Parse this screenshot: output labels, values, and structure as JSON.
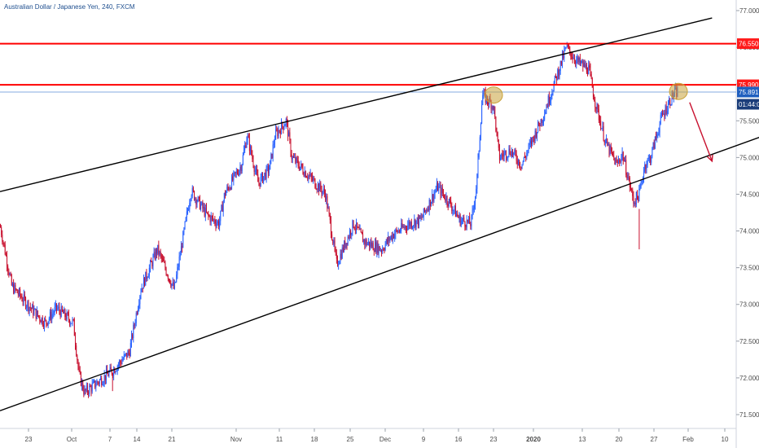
{
  "header": {
    "title": "Australian Dollar / Japanese Yen, 240, FXCM"
  },
  "colors": {
    "bull": "#2962ff",
    "bear": "#c8102e",
    "resistance": "#ff0000",
    "trend": "#000000",
    "price_line": "#5b8fd6",
    "highlight": "#c8a23a",
    "label_red": "#ff1a1a",
    "label_blue": "#1f5fbf",
    "label_dark": "#1b3d7a"
  },
  "chart_data": {
    "type": "candlestick",
    "title": "Australian Dollar / Japanese Yen, 240, FXCM",
    "ylim": [
      71.35,
      77.15
    ],
    "y_ticks": [
      "77.000",
      "76.500",
      "76.000",
      "75.500",
      "75.000",
      "74.500",
      "74.000",
      "73.500",
      "73.000",
      "72.500",
      "72.000",
      "71.500"
    ],
    "y_tick_values": [
      77.0,
      76.5,
      76.0,
      75.5,
      75.0,
      74.5,
      74.0,
      73.5,
      73.0,
      72.5,
      72.0,
      71.5
    ],
    "x_ticks": [
      "23",
      "Oct",
      "7",
      "14",
      "21",
      "Nov",
      "11",
      "18",
      "25",
      "Dec",
      "9",
      "16",
      "23",
      "2020",
      "13",
      "20",
      "27",
      "Feb",
      "10"
    ],
    "x_tick_bold": [
      "2020"
    ],
    "grid": false,
    "price_path": [
      [
        "2019-09-16",
        74.25
      ],
      [
        "2019-09-18",
        74.05
      ],
      [
        "2019-09-20",
        73.25
      ],
      [
        "2019-09-24",
        72.9
      ],
      [
        "2019-09-26",
        72.75
      ],
      [
        "2019-09-28",
        72.95
      ],
      [
        "2019-10-01",
        72.75
      ],
      [
        "2019-10-02",
        72.05
      ],
      [
        "2019-10-03",
        71.8
      ],
      [
        "2019-10-08",
        72.1
      ],
      [
        "2019-10-11",
        72.35
      ],
      [
        "2019-10-13",
        73.2
      ],
      [
        "2019-10-16",
        73.75
      ],
      [
        "2019-10-19",
        73.2
      ],
      [
        "2019-10-22",
        74.55
      ],
      [
        "2019-10-25",
        74.2
      ],
      [
        "2019-10-27",
        74.1
      ],
      [
        "2019-10-28",
        74.5
      ],
      [
        "2019-10-31",
        74.9
      ],
      [
        "2019-11-01",
        75.3
      ],
      [
        "2019-11-03",
        74.65
      ],
      [
        "2019-11-05",
        74.85
      ],
      [
        "2019-11-06",
        75.3
      ],
      [
        "2019-11-08",
        75.5
      ],
      [
        "2019-11-09",
        75.0
      ],
      [
        "2019-11-12",
        74.75
      ],
      [
        "2019-11-15",
        74.5
      ],
      [
        "2019-11-17",
        73.55
      ],
      [
        "2019-11-20",
        74.1
      ],
      [
        "2019-11-22",
        73.85
      ],
      [
        "2019-11-25",
        73.75
      ],
      [
        "2019-11-27",
        73.95
      ],
      [
        "2019-11-30",
        74.1
      ],
      [
        "2019-12-02",
        74.15
      ],
      [
        "2019-12-05",
        74.6
      ],
      [
        "2019-12-07",
        74.4
      ],
      [
        "2019-12-09",
        74.15
      ],
      [
        "2019-12-11",
        74.1
      ],
      [
        "2019-12-12",
        74.65
      ],
      [
        "2019-12-13",
        75.85
      ],
      [
        "2019-12-15",
        75.7
      ],
      [
        "2019-12-16",
        75.0
      ],
      [
        "2019-12-18",
        75.1
      ],
      [
        "2019-12-20",
        74.9
      ],
      [
        "2019-12-24",
        75.6
      ],
      [
        "2019-12-26",
        76.05
      ],
      [
        "2019-12-28",
        76.5
      ],
      [
        "2019-12-30",
        76.3
      ],
      [
        "2020-01-01",
        76.2
      ],
      [
        "2020-01-02",
        75.8
      ],
      [
        "2020-01-04",
        75.2
      ],
      [
        "2020-01-06",
        74.9
      ],
      [
        "2020-01-07",
        75.05
      ],
      [
        "2020-01-09",
        74.4
      ],
      [
        "2020-01-10",
        74.5
      ],
      [
        "2020-01-11",
        74.9
      ],
      [
        "2020-01-12",
        75.0
      ],
      [
        "2020-01-14",
        75.55
      ],
      [
        "2020-01-16",
        75.85
      ],
      [
        "2020-01-17",
        75.9
      ]
    ],
    "annotations": {
      "resistance_levels": [
        76.55,
        75.99
      ],
      "current_price": 75.891,
      "upper_channel": [
        [
          "2019-09-16",
          74.5
        ],
        [
          "2020-01-23",
          76.9
        ]
      ],
      "lower_channel": [
        [
          "2019-09-16",
          71.5
        ],
        [
          "2020-02-05",
          75.4
        ]
      ],
      "highlight_circles": [
        [
          "2019-12-15",
          75.85
        ],
        [
          "2020-01-17",
          75.9
        ]
      ],
      "projection_arrow": [
        [
          "2020-01-19",
          75.75
        ],
        [
          "2020-01-23",
          74.95
        ]
      ]
    },
    "price_labels": [
      {
        "text": "76.550",
        "value": 76.55,
        "kind": "resistance"
      },
      {
        "text": "75.990",
        "value": 75.99,
        "kind": "resistance"
      },
      {
        "text": "75.891",
        "value": 75.891,
        "kind": "price"
      },
      {
        "text": "01:44:04",
        "value": 75.891,
        "kind": "countdown"
      }
    ]
  }
}
